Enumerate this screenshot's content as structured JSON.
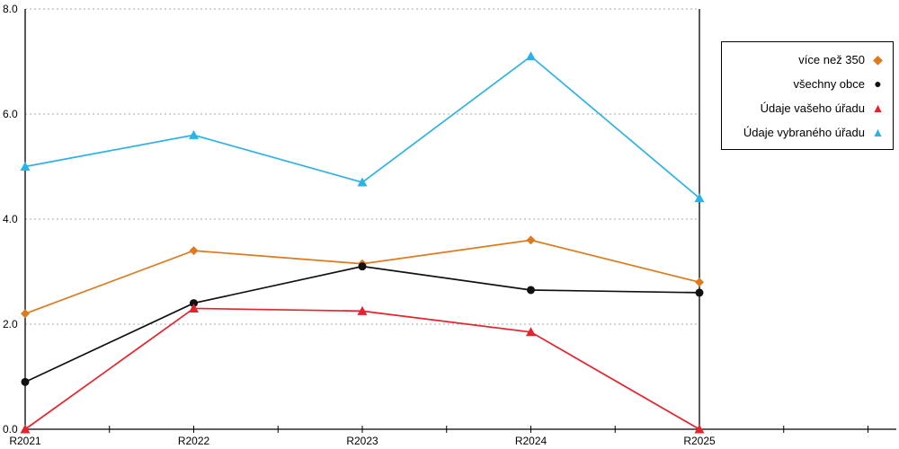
{
  "chart_data": {
    "type": "line",
    "title": "",
    "xlabel": "",
    "ylabel": "",
    "x": [
      "R2021",
      "R2022",
      "R2023",
      "R2024",
      "R2025"
    ],
    "series": [
      {
        "name": "více než 350",
        "color": "#dd7a1e",
        "marker": "diamond",
        "values": [
          2.2,
          3.4,
          3.15,
          3.6,
          2.8
        ]
      },
      {
        "name": "všechny obce",
        "color": "#111111",
        "marker": "circle",
        "values": [
          0.9,
          2.4,
          3.1,
          2.65,
          2.6
        ]
      },
      {
        "name": "Údaje vašeho úřadu",
        "color": "#e8222d",
        "marker": "triangle",
        "values": [
          0.0,
          2.3,
          2.25,
          1.85,
          0.0
        ]
      },
      {
        "name": "Údaje vybraného úřadu",
        "color": "#2eb2e6",
        "marker": "triangle",
        "values": [
          5.0,
          5.6,
          4.7,
          7.1,
          4.4
        ]
      }
    ],
    "ylim": [
      0,
      8
    ],
    "yticks": [
      0,
      2,
      4,
      6,
      8
    ],
    "ytick_labels": [
      "0.0",
      "2.0",
      "4.0",
      "6.0",
      "8.0"
    ],
    "grid": "dotted-horizontal",
    "gridline_color": "#aaaaaa",
    "axis_color": "#000000",
    "legend_position": "top-right-outside"
  }
}
